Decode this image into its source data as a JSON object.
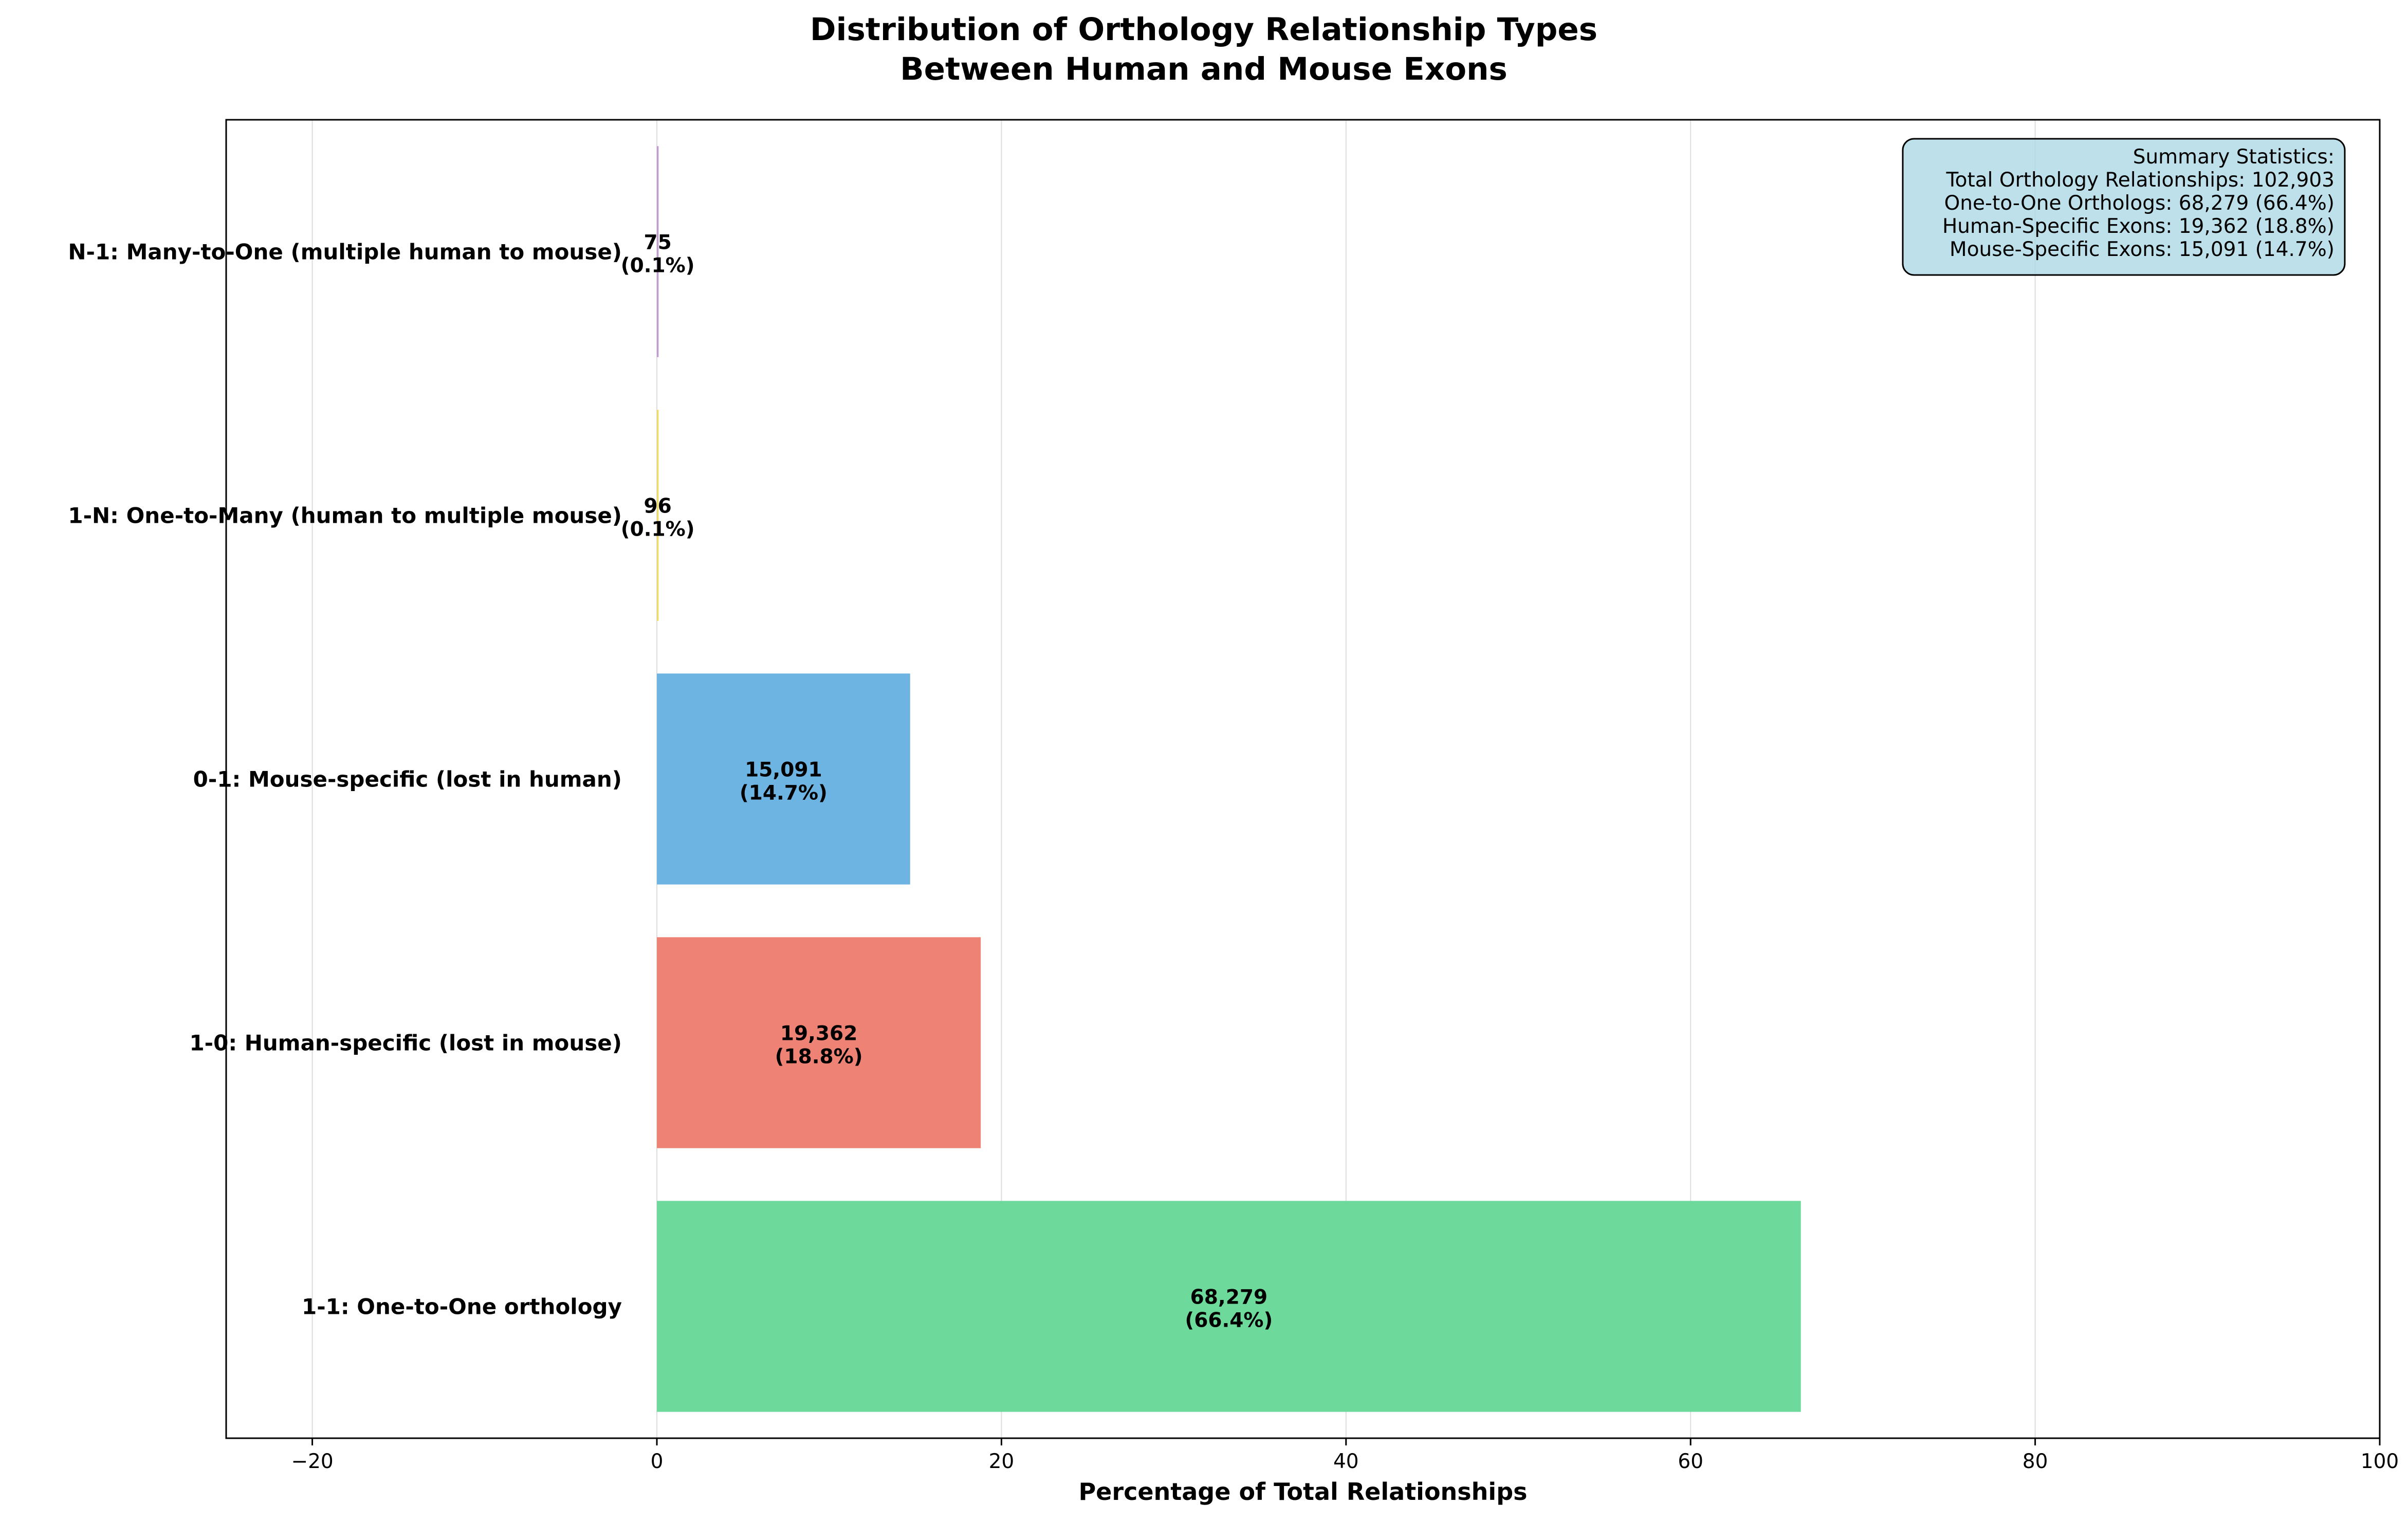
{
  "chart_data": {
    "type": "bar",
    "orientation": "horizontal",
    "title": [
      "Distribution of Orthology Relationship Types",
      "Between Human and Mouse Exons"
    ],
    "xlabel": "Percentage of Total Relationships",
    "ylabel": "",
    "xlim": [
      -25,
      100
    ],
    "xticks": [
      -20,
      0,
      20,
      40,
      60,
      80,
      100
    ],
    "xtick_labels": [
      "−20",
      "0",
      "20",
      "40",
      "60",
      "80",
      "100"
    ],
    "grid": "x-axis, light",
    "categories": [
      "1-1: One-to-One orthology",
      "1-0: Human-specific (lost in mouse)",
      "0-1: Mouse-specific (lost in human)",
      "1-N: One-to-Many (human to multiple mouse)",
      "N-1: Many-to-One (multiple human to mouse)"
    ],
    "values": [
      66.4,
      18.8,
      14.7,
      0.1,
      0.1
    ],
    "counts": [
      "68,279",
      "19,362",
      "15,091",
      "96",
      "75"
    ],
    "percent_labels": [
      "(66.4%)",
      "(18.8%)",
      "(14.7%)",
      "(0.1%)",
      "(0.1%)"
    ],
    "colors": [
      "#6dd99a",
      "#ee8275",
      "#6db4e3",
      "#f3da60",
      "#c39bd3"
    ],
    "stats_box": {
      "lines": [
        "Summary Statistics:",
        "Total Orthology Relationships: 102,903",
        "One-to-One Orthologs: 68,279 (66.4%)",
        "Human-Specific Exons: 19,362 (18.8%)",
        "Mouse-Specific Exons: 15,091 (14.7%)"
      ],
      "placement": "top-right",
      "background": "#add8e6"
    }
  }
}
